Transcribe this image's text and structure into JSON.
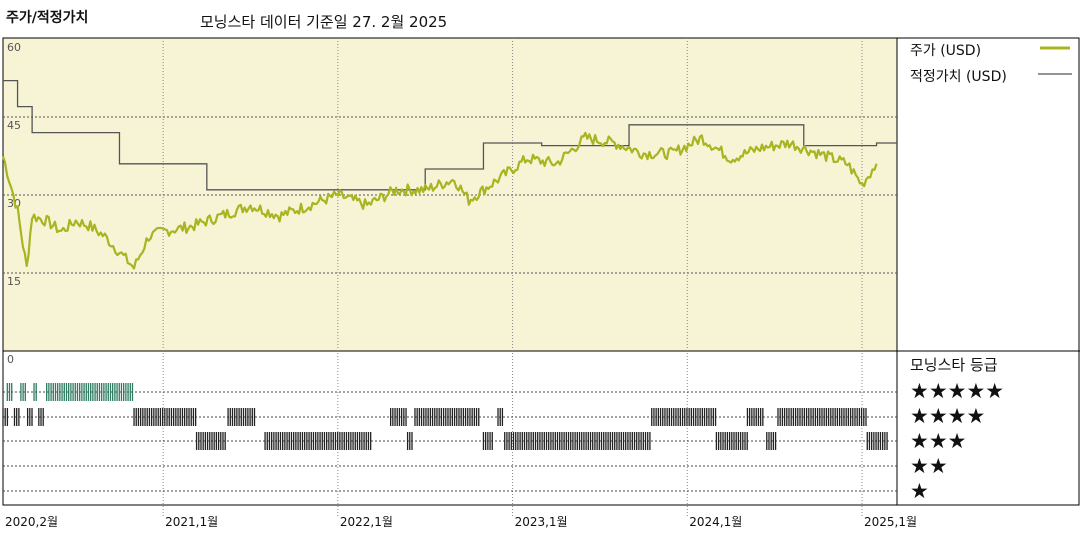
{
  "header": {
    "title": "주가/적정가치",
    "subtitle": "모닝스타 데이터 기준일 27. 2월 2025"
  },
  "legend": {
    "price_label": "주가 (USD)",
    "fair_label": "적정가치 (USD)",
    "rating_label": "모닝스타 등급"
  },
  "colors": {
    "price": "#a8b420",
    "fair_value": "#555555",
    "plot_bg": "#f7f4d6",
    "star5_bar": "#2e7b62",
    "star_bar": "#222222"
  },
  "chart_data": {
    "type": "line",
    "title": "주가/적정가치",
    "ylim": [
      0,
      60
    ],
    "yticks": [
      "60",
      "45",
      "30",
      "15",
      "0"
    ],
    "xticks": [
      "2020,2월",
      "2021,1월",
      "2022,1월",
      "2023,1월",
      "2024,1월",
      "2025,1월"
    ],
    "series": [
      {
        "name": "주가 (USD)",
        "points": [
          [
            "2020-02",
            37.5
          ],
          [
            "2020-03",
            27
          ],
          [
            "2020-03-20",
            16
          ],
          [
            "2020-04",
            26
          ],
          [
            "2020-05",
            25
          ],
          [
            "2020-06",
            23
          ],
          [
            "2020-07",
            25
          ],
          [
            "2020-08",
            24
          ],
          [
            "2020-09",
            22
          ],
          [
            "2020-10",
            19
          ],
          [
            "2020-11",
            16
          ],
          [
            "2020-12",
            22
          ],
          [
            "2021-01",
            23
          ],
          [
            "2021-03",
            24
          ],
          [
            "2021-05",
            26
          ],
          [
            "2021-07",
            28
          ],
          [
            "2021-09",
            26
          ],
          [
            "2021-11",
            28
          ],
          [
            "2022-01",
            30
          ],
          [
            "2022-03",
            28
          ],
          [
            "2022-05",
            31
          ],
          [
            "2022-07",
            31
          ],
          [
            "2022-09",
            33
          ],
          [
            "2022-10",
            29
          ],
          [
            "2022-12",
            33
          ],
          [
            "2023-02",
            37
          ],
          [
            "2023-04",
            36
          ],
          [
            "2023-06",
            41
          ],
          [
            "2023-08",
            40
          ],
          [
            "2023-10",
            38
          ],
          [
            "2023-12",
            38
          ],
          [
            "2024-02",
            41
          ],
          [
            "2024-04",
            37
          ],
          [
            "2024-06",
            39
          ],
          [
            "2024-08",
            40
          ],
          [
            "2024-10",
            38
          ],
          [
            "2024-12",
            36
          ],
          [
            "2025-01",
            32
          ],
          [
            "2025-02",
            36
          ]
        ]
      },
      {
        "name": "적정가치 (USD)",
        "steps": [
          [
            "2020-02",
            52
          ],
          [
            "2020-03",
            47
          ],
          [
            "2020-04",
            42
          ],
          [
            "2020-10",
            36
          ],
          [
            "2021-04",
            31
          ],
          [
            "2022-07",
            35
          ],
          [
            "2022-11",
            40
          ],
          [
            "2023-03",
            39.5
          ],
          [
            "2023-09",
            43.5
          ],
          [
            "2024-09",
            39.5
          ],
          [
            "2025-02",
            40
          ]
        ]
      }
    ],
    "ratings": {
      "label": "모닝스타 등급",
      "rows": [
        "★★★★★",
        "★★★★",
        "★★★",
        "★★",
        "★"
      ],
      "periods": [
        [
          5,
          "2020-02-10",
          "2020-02-22"
        ],
        [
          4,
          "2020-02-01",
          "2020-02-12"
        ],
        [
          4,
          "2020-02-25",
          "2020-03-05"
        ],
        [
          5,
          "2020-03-08",
          "2020-03-20"
        ],
        [
          4,
          "2020-03-22",
          "2020-04-01"
        ],
        [
          5,
          "2020-04-05",
          "2020-04-12"
        ],
        [
          4,
          "2020-04-15",
          "2020-04-28"
        ],
        [
          5,
          "2020-05-01",
          "2020-10-31"
        ],
        [
          4,
          "2020-11-01",
          "2021-03-10"
        ],
        [
          3,
          "2021-03-10",
          "2021-05-10"
        ],
        [
          4,
          "2021-05-15",
          "2021-07-10"
        ],
        [
          3,
          "2021-08-01",
          "2022-03-10"
        ],
        [
          4,
          "2022-04-20",
          "2022-05-25"
        ],
        [
          3,
          "2022-05-25",
          "2022-06-08"
        ],
        [
          4,
          "2022-06-10",
          "2022-10-25"
        ],
        [
          3,
          "2022-11-01",
          "2022-11-20"
        ],
        [
          4,
          "2022-12-01",
          "2022-12-12"
        ],
        [
          3,
          "2022-12-15",
          "2023-10-15"
        ],
        [
          4,
          "2023-10-18",
          "2024-03-01"
        ],
        [
          3,
          "2024-03-01",
          "2024-05-05"
        ],
        [
          4,
          "2024-05-05",
          "2024-06-10"
        ],
        [
          3,
          "2024-06-15",
          "2024-07-05"
        ],
        [
          4,
          "2024-07-08",
          "2025-01-10"
        ],
        [
          3,
          "2025-01-12",
          "2025-02-27"
        ]
      ]
    }
  }
}
